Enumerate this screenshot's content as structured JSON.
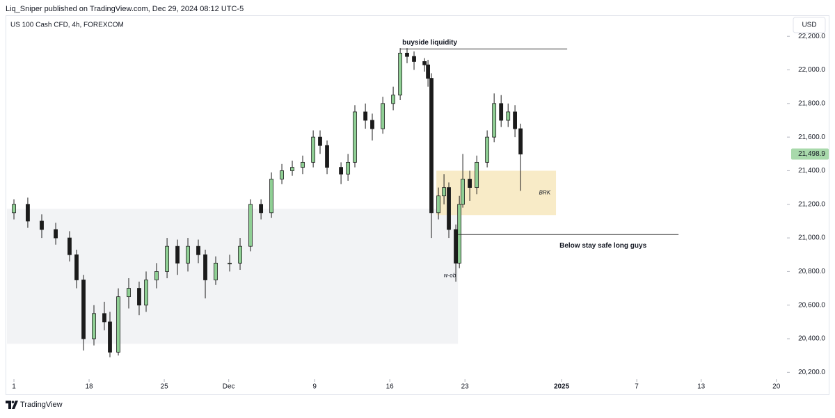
{
  "header": {
    "publisher": "Liq_Sniper published on TradingView.com, Dec 29, 2024 08:12 UTC-5"
  },
  "footer": {
    "brand": "TradingView"
  },
  "chart_data": {
    "type": "candlestick",
    "title": "US 100 Cash CFD, 4h, FOREXCOM",
    "currency": "USD",
    "up_color": "#8fcf94",
    "down_color": "#1b1b1b",
    "wick_color": "#1b1b1b",
    "grid": false,
    "xlim": [
      10.35,
      83.25
    ],
    "xticks": [
      {
        "value": 11,
        "label": "1"
      },
      18,
      25,
      {
        "value": 31,
        "label": "Dec"
      },
      9,
      16,
      23,
      {
        "value": 62,
        "label": "2025"
      },
      7,
      13,
      20
    ],
    "ylim": [
      20160,
      22325
    ],
    "yticks": [
      {
        "value": 20200,
        "label": "20,200.0"
      },
      {
        "value": 20400,
        "label": "20,400.0"
      },
      {
        "value": 20600,
        "label": "20,600.0"
      },
      {
        "value": 20800,
        "label": "20,800.0"
      },
      {
        "value": 21000,
        "label": "21,000.0"
      },
      {
        "value": 21200,
        "label": "21,200.0"
      },
      {
        "value": 21400,
        "label": "21,400.0"
      },
      {
        "value": 21600,
        "label": "21,600.0"
      },
      {
        "value": 21800,
        "label": "21,800.0"
      },
      {
        "value": 22000,
        "label": "22,000.0"
      },
      {
        "value": 22200,
        "label": "22,200.0"
      }
    ],
    "last_price": {
      "value": 21498.9,
      "label": "21,498.9",
      "color": "#a8d9ab"
    },
    "x": [
      11.0,
      12.29,
      13.59,
      14.89,
      16.18,
      16.83,
      17.48,
      18.45,
      19.42,
      19.94,
      20.72,
      21.69,
      22.66,
      23.31,
      24.28,
      25.26,
      26.23,
      27.2,
      28.17,
      28.82,
      29.79,
      31.09,
      32.06,
      33.03,
      34.01,
      34.98,
      35.95,
      36.92,
      37.89,
      38.87,
      39.51,
      40.16,
      41.46,
      42.11,
      42.75,
      43.73,
      44.37,
      45.35,
      46.32,
      46.97,
      47.61,
      48.26,
      49.24,
      49.56,
      49.88,
      50.53,
      51.05,
      51.5,
      52.15,
      52.48,
      52.8,
      53.45,
      54.1,
      55.07,
      55.72,
      56.37,
      57.02,
      57.66,
      58.18
    ],
    "open": [
      21150,
      21200,
      21100,
      21050,
      21000,
      20900,
      20750,
      20400,
      20550,
      20500,
      20320,
      20650,
      20700,
      20600,
      20750,
      20800,
      20950,
      20850,
      20950,
      20900,
      20750,
      20850,
      20850,
      20950,
      21200,
      21150,
      21350,
      21400,
      21420,
      21450,
      21600,
      21550,
      21420,
      21380,
      21450,
      21750,
      21700,
      21650,
      21800,
      21850,
      22100,
      22080,
      22050,
      22030,
      21950,
      21150,
      21250,
      21300,
      21050,
      20850,
      21200,
      21350,
      21300,
      21450,
      21600,
      21800,
      21700,
      21750,
      21650
    ],
    "high": [
      21230,
      21240,
      21140,
      21090,
      21040,
      20930,
      20780,
      20600,
      20620,
      20560,
      20700,
      20760,
      20740,
      20800,
      20850,
      21000,
      20990,
      21000,
      20990,
      20930,
      20890,
      20900,
      21000,
      21230,
      21230,
      21390,
      21440,
      21460,
      21490,
      21640,
      21640,
      21580,
      21450,
      21500,
      21790,
      21800,
      21740,
      21840,
      21900,
      22130,
      22130,
      22110,
      22070,
      22060,
      21980,
      21300,
      21380,
      21330,
      21080,
      21250,
      21500,
      21400,
      21490,
      21640,
      21860,
      21850,
      21800,
      21790,
      21680
    ],
    "low": [
      21110,
      21060,
      21000,
      20960,
      20860,
      20700,
      20330,
      20360,
      20450,
      20290,
      20300,
      20580,
      20540,
      20560,
      20700,
      20760,
      20780,
      20800,
      20850,
      20640,
      20720,
      20800,
      20810,
      20920,
      21110,
      21120,
      21320,
      21370,
      21380,
      21420,
      21500,
      21380,
      21320,
      21340,
      21420,
      21650,
      21580,
      21620,
      21760,
      21820,
      22040,
      22000,
      21990,
      21900,
      21000,
      21110,
      21200,
      21000,
      20740,
      20820,
      21180,
      21220,
      21260,
      21420,
      21570,
      21660,
      21660,
      21600,
      21280
    ],
    "close": [
      21200,
      21100,
      21050,
      21000,
      20900,
      20750,
      20400,
      20550,
      20500,
      20320,
      20650,
      20700,
      20600,
      20750,
      20800,
      20950,
      20850,
      20950,
      20900,
      20750,
      20850,
      20850,
      20950,
      21200,
      21150,
      21350,
      21400,
      21420,
      21450,
      21600,
      21550,
      21420,
      21380,
      21450,
      21750,
      21700,
      21650,
      21800,
      21850,
      22100,
      22080,
      22050,
      22030,
      21950,
      21150,
      21250,
      21300,
      21050,
      20850,
      21200,
      21350,
      21300,
      21450,
      21600,
      21800,
      21700,
      21750,
      21650,
      21499
    ],
    "zones": [
      {
        "label": "w-ob",
        "x": [
          10.35,
          52.35
        ],
        "y": [
          20370,
          21173
        ],
        "color": "#f2f3f5"
      },
      {
        "label": "BRK",
        "x": [
          50.34,
          61.48
        ],
        "y": [
          21136,
          21400
        ],
        "color": "#f8ebc7"
      }
    ],
    "annotations": [
      {
        "text": "buyside liquidity",
        "x": [
          46.97,
          62.52
        ],
        "y": 22125
      },
      {
        "text": "Below stay safe long guys",
        "x": [
          52.35,
          72.89
        ],
        "y": 21020
      }
    ]
  }
}
